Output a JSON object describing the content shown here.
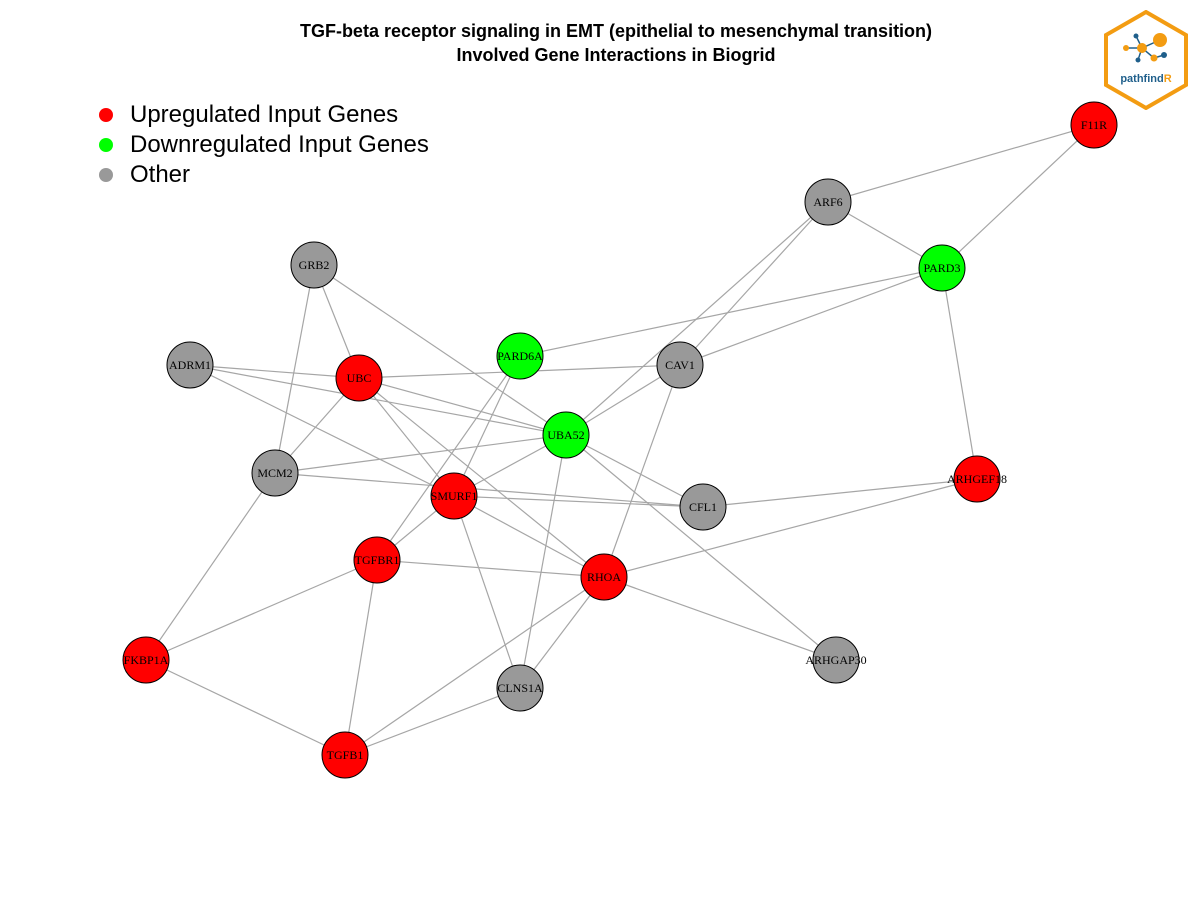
{
  "title": {
    "line1": "TGF-beta receptor signaling in EMT (epithelial to mesenchymal transition)",
    "line2": "Involved Gene Interactions in Biogrid"
  },
  "legend": [
    {
      "label": "Upregulated Input Genes",
      "color": "#ff0000"
    },
    {
      "label": "Downregulated Input Genes",
      "color": "#00ff00"
    },
    {
      "label": "Other",
      "color": "#999999"
    }
  ],
  "colors": {
    "up": "#ff0000",
    "down": "#00ff00",
    "other": "#999999",
    "edge": "#a6a6a6",
    "logo_border": "#f39c12"
  },
  "logo": {
    "text_main": "pathfind",
    "text_accent": "R"
  },
  "nodes": [
    {
      "id": "F11R",
      "status": "up"
    },
    {
      "id": "ARF6",
      "status": "other"
    },
    {
      "id": "PARD3",
      "status": "down"
    },
    {
      "id": "GRB2",
      "status": "other"
    },
    {
      "id": "PARD6A",
      "status": "down"
    },
    {
      "id": "CAV1",
      "status": "other"
    },
    {
      "id": "ADRM1",
      "status": "other"
    },
    {
      "id": "UBC",
      "status": "up"
    },
    {
      "id": "UBA52",
      "status": "down"
    },
    {
      "id": "MCM2",
      "status": "other"
    },
    {
      "id": "SMURF1",
      "status": "up"
    },
    {
      "id": "CFL1",
      "status": "other"
    },
    {
      "id": "ARHGEF18",
      "status": "up"
    },
    {
      "id": "TGFBR1",
      "status": "up"
    },
    {
      "id": "RHOA",
      "status": "up"
    },
    {
      "id": "FKBP1A",
      "status": "up"
    },
    {
      "id": "CLNS1A",
      "status": "other"
    },
    {
      "id": "ARHGAP30",
      "status": "other"
    },
    {
      "id": "TGFB1",
      "status": "up"
    }
  ],
  "edges": [
    [
      "F11R",
      "ARF6"
    ],
    [
      "F11R",
      "PARD3"
    ],
    [
      "ARF6",
      "PARD3"
    ],
    [
      "ARF6",
      "CAV1"
    ],
    [
      "ARF6",
      "UBA52"
    ],
    [
      "PARD3",
      "PARD6A"
    ],
    [
      "PARD3",
      "CAV1"
    ],
    [
      "PARD3",
      "ARHGEF18"
    ],
    [
      "GRB2",
      "UBC"
    ],
    [
      "GRB2",
      "MCM2"
    ],
    [
      "GRB2",
      "UBA52"
    ],
    [
      "ADRM1",
      "UBC"
    ],
    [
      "ADRM1",
      "UBA52"
    ],
    [
      "ADRM1",
      "SMURF1"
    ],
    [
      "UBC",
      "CAV1"
    ],
    [
      "UBC",
      "MCM2"
    ],
    [
      "UBC",
      "UBA52"
    ],
    [
      "UBC",
      "SMURF1"
    ],
    [
      "UBC",
      "RHOA"
    ],
    [
      "PARD6A",
      "SMURF1"
    ],
    [
      "PARD6A",
      "TGFBR1"
    ],
    [
      "CAV1",
      "UBA52"
    ],
    [
      "CAV1",
      "RHOA"
    ],
    [
      "UBA52",
      "MCM2"
    ],
    [
      "UBA52",
      "SMURF1"
    ],
    [
      "UBA52",
      "CFL1"
    ],
    [
      "UBA52",
      "CLNS1A"
    ],
    [
      "UBA52",
      "ARHGAP30"
    ],
    [
      "MCM2",
      "CFL1"
    ],
    [
      "MCM2",
      "FKBP1A"
    ],
    [
      "SMURF1",
      "CFL1"
    ],
    [
      "SMURF1",
      "TGFBR1"
    ],
    [
      "SMURF1",
      "RHOA"
    ],
    [
      "SMURF1",
      "CLNS1A"
    ],
    [
      "CFL1",
      "ARHGEF18"
    ],
    [
      "ARHGEF18",
      "RHOA"
    ],
    [
      "TGFBR1",
      "RHOA"
    ],
    [
      "TGFBR1",
      "FKBP1A"
    ],
    [
      "TGFBR1",
      "TGFB1"
    ],
    [
      "RHOA",
      "CLNS1A"
    ],
    [
      "RHOA",
      "TGFB1"
    ],
    [
      "RHOA",
      "ARHGAP30"
    ],
    [
      "FKBP1A",
      "TGFB1"
    ],
    [
      "CLNS1A",
      "TGFB1"
    ]
  ]
}
